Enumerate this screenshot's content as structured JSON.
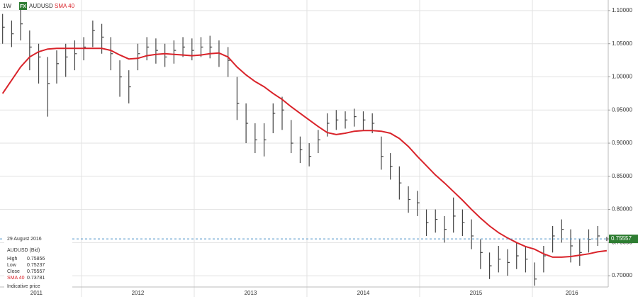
{
  "chart_data": {
    "type": "ohlc",
    "interval": "1W",
    "badge": "FX",
    "x": [
      2011.3,
      2011.38,
      2011.46,
      2011.54,
      2011.62,
      2011.7,
      2011.78,
      2011.86,
      2011.94,
      2012.02,
      2012.1,
      2012.18,
      2012.26,
      2012.34,
      2012.42,
      2012.5,
      2012.58,
      2012.66,
      2012.74,
      2012.82,
      2012.9,
      2012.98,
      2013.06,
      2013.14,
      2013.22,
      2013.3,
      2013.38,
      2013.46,
      2013.54,
      2013.62,
      2013.7,
      2013.78,
      2013.86,
      2013.94,
      2014.02,
      2014.1,
      2014.18,
      2014.26,
      2014.34,
      2014.42,
      2014.5,
      2014.58,
      2014.66,
      2014.74,
      2014.82,
      2014.9,
      2014.98,
      2015.06,
      2015.14,
      2015.22,
      2015.3,
      2015.38,
      2015.46,
      2015.54,
      2015.62,
      2015.7,
      2015.78,
      2015.86,
      2015.94,
      2016.02,
      2016.1,
      2016.18,
      2016.26,
      2016.34,
      2016.42,
      2016.5,
      2016.58,
      2016.66
    ],
    "xlim": [
      2011.277,
      2016.673
    ],
    "xticks": [
      {
        "value": 2011.6,
        "label": "2011"
      },
      {
        "value": 2012.5,
        "label": "2012"
      },
      {
        "value": 2013.5,
        "label": "2013"
      },
      {
        "value": 2014.5,
        "label": "2014"
      },
      {
        "value": 2015.5,
        "label": "2015"
      },
      {
        "value": 2016.35,
        "label": "2016"
      }
    ],
    "xgrid": [
      2012,
      2013,
      2014,
      2015,
      2016
    ],
    "ylim": [
      0.683,
      1.116
    ],
    "yticks": [
      {
        "value": 0.7,
        "label": "0.70000"
      },
      {
        "value": 0.75,
        "label": "0.75000"
      },
      {
        "value": 0.8,
        "label": "0.80000"
      },
      {
        "value": 0.85,
        "label": "0.85000"
      },
      {
        "value": 0.9,
        "label": "0.90000"
      },
      {
        "value": 0.95,
        "label": "0.95000"
      },
      {
        "value": 1.0,
        "label": "1.00000"
      },
      {
        "value": 1.05,
        "label": "1.05000"
      },
      {
        "value": 1.1,
        "label": "1.10000"
      }
    ],
    "grid": true,
    "series": [
      {
        "name": "AUDUSD",
        "color": "#444444",
        "high": [
          1.095,
          1.085,
          1.105,
          1.07,
          1.05,
          1.03,
          1.04,
          1.05,
          1.055,
          1.06,
          1.085,
          1.08,
          1.06,
          1.025,
          1.01,
          1.05,
          1.06,
          1.058,
          1.05,
          1.055,
          1.06,
          1.058,
          1.06,
          1.062,
          1.055,
          1.045,
          1.0,
          0.96,
          0.93,
          0.93,
          0.96,
          0.97,
          0.935,
          0.91,
          0.9,
          0.92,
          0.945,
          0.95,
          0.948,
          0.952,
          0.948,
          0.945,
          0.91,
          0.885,
          0.865,
          0.835,
          0.828,
          0.8,
          0.8,
          0.79,
          0.818,
          0.8,
          0.785,
          0.755,
          0.735,
          0.745,
          0.74,
          0.75,
          0.745,
          0.72,
          0.745,
          0.775,
          0.785,
          0.77,
          0.755,
          0.77,
          0.775,
          0.75856
        ],
        "low": [
          1.05,
          1.045,
          1.055,
          1.01,
          0.99,
          0.94,
          0.99,
          1.0,
          1.01,
          1.025,
          1.045,
          1.035,
          1.01,
          0.97,
          0.96,
          1.01,
          1.025,
          1.02,
          1.015,
          1.02,
          1.03,
          1.025,
          1.03,
          1.028,
          1.015,
          1.0,
          0.935,
          0.9,
          0.885,
          0.88,
          0.915,
          0.92,
          0.885,
          0.87,
          0.865,
          0.885,
          0.91,
          0.92,
          0.922,
          0.925,
          0.92,
          0.915,
          0.86,
          0.845,
          0.815,
          0.795,
          0.79,
          0.76,
          0.765,
          0.75,
          0.765,
          0.76,
          0.74,
          0.71,
          0.695,
          0.705,
          0.7,
          0.71,
          0.705,
          0.685,
          0.705,
          0.735,
          0.75,
          0.72,
          0.715,
          0.735,
          0.745,
          0.75237
        ],
        "close": [
          1.075,
          1.065,
          1.08,
          1.045,
          1.03,
          0.99,
          1.02,
          1.03,
          1.035,
          1.045,
          1.07,
          1.06,
          1.035,
          1.0,
          0.985,
          1.035,
          1.045,
          1.04,
          1.03,
          1.04,
          1.045,
          1.04,
          1.045,
          1.045,
          1.035,
          1.025,
          0.96,
          0.93,
          0.905,
          0.905,
          0.945,
          0.95,
          0.9,
          0.89,
          0.88,
          0.905,
          0.93,
          0.935,
          0.935,
          0.94,
          0.935,
          0.93,
          0.88,
          0.865,
          0.84,
          0.815,
          0.81,
          0.78,
          0.785,
          0.77,
          0.79,
          0.78,
          0.76,
          0.735,
          0.715,
          0.725,
          0.72,
          0.73,
          0.725,
          0.695,
          0.73,
          0.76,
          0.77,
          0.745,
          0.735,
          0.755,
          0.76,
          0.75557
        ]
      },
      {
        "name": "SMA 40",
        "color": "#d9232a",
        "values": [
          0.975,
          0.995,
          1.015,
          1.03,
          1.038,
          1.042,
          1.043,
          1.043,
          1.043,
          1.043,
          1.043,
          1.043,
          1.04,
          1.033,
          1.027,
          1.028,
          1.032,
          1.034,
          1.035,
          1.034,
          1.033,
          1.032,
          1.033,
          1.035,
          1.036,
          1.03,
          1.015,
          1.003,
          0.993,
          0.985,
          0.975,
          0.966,
          0.955,
          0.945,
          0.935,
          0.925,
          0.916,
          0.913,
          0.915,
          0.918,
          0.919,
          0.919,
          0.918,
          0.915,
          0.907,
          0.895,
          0.88,
          0.866,
          0.852,
          0.84,
          0.827,
          0.814,
          0.8,
          0.787,
          0.775,
          0.765,
          0.757,
          0.75,
          0.744,
          0.74,
          0.733,
          0.728,
          0.728,
          0.729,
          0.731,
          0.733,
          0.736,
          0.73781
        ]
      }
    ],
    "info": {
      "date": "29 August 2016",
      "title": "AUDUSD (Bid)",
      "high": "High",
      "low": "Low",
      "close": "Close",
      "note": "Indicative price"
    }
  }
}
